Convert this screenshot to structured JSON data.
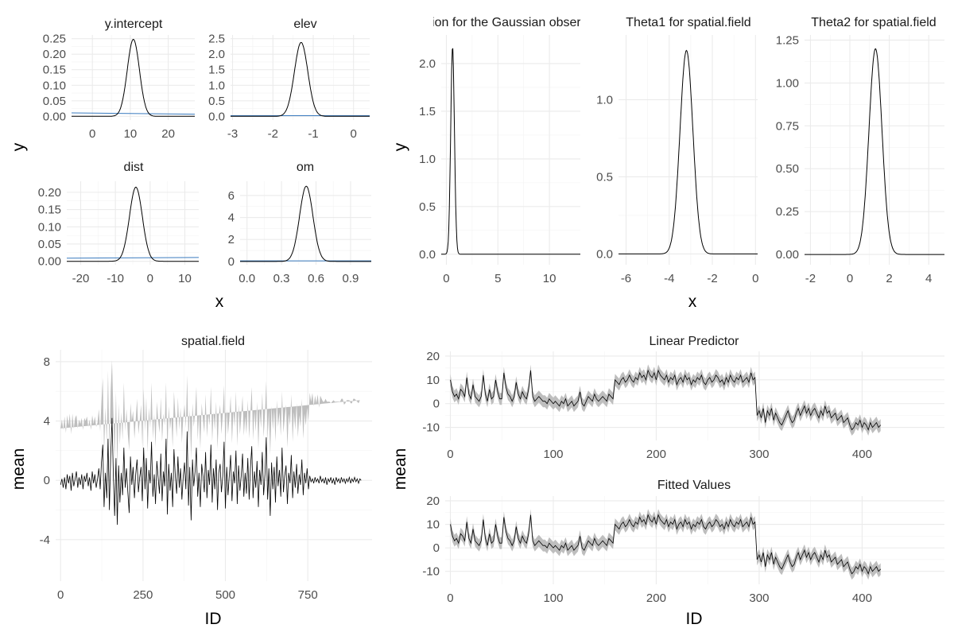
{
  "colors": {
    "band": "#bebebe",
    "mean_line": "#000000",
    "prior": "#3a7bbf",
    "grid": "#ebebeb"
  },
  "labels": {
    "fixed_x": "x",
    "fixed_y": "y",
    "hyper_x": "x",
    "hyper_y": "y",
    "spatial_x": "ID",
    "spatial_y": "mean",
    "pred_x": "ID",
    "pred_y": "mean"
  },
  "chart_data": [
    {
      "type": "line",
      "title": "y.intercept",
      "xlim": [
        -5.5,
        27
      ],
      "ylim": [
        -0.012,
        0.262
      ],
      "xticks": [
        0,
        10,
        20
      ],
      "xtick_labels": [
        "0",
        "10",
        "20"
      ],
      "yticks": [
        0,
        0.05,
        0.1,
        0.15,
        0.2,
        0.25
      ],
      "ytick_labels": [
        "0.00",
        "0.05",
        "0.10",
        "0.15",
        "0.20",
        "0.25"
      ],
      "posterior": {
        "kind": "gauss",
        "mean": 10.8,
        "sd": 1.6,
        "peak": 0.248
      },
      "prior": {
        "x": [
          -5.5,
          27
        ],
        "y": [
          0.011,
          0.007
        ]
      }
    },
    {
      "type": "line",
      "title": "elev",
      "xlim": [
        -3.05,
        0.4
      ],
      "ylim": [
        -0.12,
        2.62
      ],
      "xticks": [
        -3,
        -2,
        -1,
        0
      ],
      "xtick_labels": [
        "-3",
        "-2",
        "-1",
        "0"
      ],
      "yticks": [
        0,
        0.5,
        1.0,
        1.5,
        2.0,
        2.5
      ],
      "ytick_labels": [
        "0.0",
        "0.5",
        "1.0",
        "1.5",
        "2.0",
        "2.5"
      ],
      "posterior": {
        "kind": "gauss",
        "mean": -1.3,
        "sd": 0.166,
        "peak": 2.38
      },
      "prior": {
        "x": [
          -3.05,
          0.4
        ],
        "y": [
          0.02,
          0.02
        ]
      }
    },
    {
      "type": "line",
      "title": "dist",
      "xlim": [
        -24,
        14
      ],
      "ylim": [
        -0.01,
        0.232
      ],
      "xticks": [
        -20,
        -10,
        0,
        10
      ],
      "xtick_labels": [
        "-20",
        "-10",
        "0",
        "10"
      ],
      "yticks": [
        0,
        0.05,
        0.1,
        0.15,
        0.2
      ],
      "ytick_labels": [
        "0.00",
        "0.05",
        "0.10",
        "0.15",
        "0.20"
      ],
      "posterior": {
        "kind": "gauss",
        "mean": -4.1,
        "sd": 1.85,
        "peak": 0.215
      },
      "prior": {
        "x": [
          -24,
          14
        ],
        "y": [
          0.009,
          0.011
        ]
      }
    },
    {
      "type": "line",
      "title": "om",
      "xlim": [
        -0.06,
        1.08
      ],
      "ylim": [
        -0.3,
        7.3
      ],
      "xticks": [
        0,
        0.3,
        0.6,
        0.9
      ],
      "xtick_labels": [
        "0.0",
        "0.3",
        "0.6",
        "0.9"
      ],
      "yticks": [
        0,
        2,
        4,
        6
      ],
      "ytick_labels": [
        "0",
        "2",
        "4",
        "6"
      ],
      "posterior": {
        "kind": "gauss",
        "mean": 0.515,
        "sd": 0.058,
        "peak": 6.85
      },
      "prior": {
        "x": [
          -0.06,
          1.08
        ],
        "y": [
          0.05,
          0.05
        ]
      }
    },
    {
      "type": "line",
      "title": "Precision for the Gaussian observations",
      "xlim": [
        -0.5,
        13
      ],
      "ylim": [
        -0.11,
        2.3
      ],
      "xticks": [
        0,
        5,
        10
      ],
      "xtick_labels": [
        "0",
        "5",
        "10"
      ],
      "yticks": [
        0,
        0.5,
        1.0,
        1.5,
        2.0
      ],
      "ytick_labels": [
        "0.0",
        "0.5",
        "1.0",
        "1.5",
        "2.0"
      ],
      "posterior": {
        "kind": "gauss",
        "mean": 0.6,
        "sd": 0.18,
        "peak": 2.18
      }
    },
    {
      "type": "line",
      "title": "Theta1 for spatial.field",
      "xlim": [
        -6.35,
        0.1
      ],
      "ylim": [
        -0.07,
        1.42
      ],
      "xticks": [
        -6,
        -4,
        -2,
        0
      ],
      "xtick_labels": [
        "-6",
        "-4",
        "-2",
        "0"
      ],
      "yticks": [
        0,
        0.5,
        1.0
      ],
      "ytick_labels": [
        "0.0",
        "0.5",
        "1.0"
      ],
      "posterior": {
        "kind": "gauss",
        "mean": -3.2,
        "sd": 0.3,
        "peak": 1.32
      }
    },
    {
      "type": "line",
      "title": "Theta2 for spatial.field",
      "xlim": [
        -2.3,
        4.8
      ],
      "ylim": [
        -0.06,
        1.28
      ],
      "xticks": [
        -2,
        0,
        2,
        4
      ],
      "xtick_labels": [
        "-2",
        "0",
        "2",
        "4"
      ],
      "yticks": [
        0,
        0.25,
        0.5,
        0.75,
        1.0,
        1.25
      ],
      "ytick_labels": [
        "0.00",
        "0.25",
        "0.50",
        "0.75",
        "1.00",
        "1.25"
      ],
      "posterior": {
        "kind": "gauss",
        "mean": 1.3,
        "sd": 0.33,
        "peak": 1.2
      }
    },
    {
      "type": "area",
      "title": "spatial.field",
      "xlim": [
        -15,
        945
      ],
      "ylim": [
        -6.8,
        8.8
      ],
      "xticks": [
        0,
        250,
        500,
        750
      ],
      "xtick_labels": [
        "0",
        "250",
        "500",
        "750"
      ],
      "yticks": [
        -4,
        0,
        4,
        8
      ],
      "ytick_labels": [
        "-4",
        "0",
        "4",
        "8"
      ],
      "x_step": 4,
      "mean": [
        -0.3,
        0.1,
        -0.5,
        0.2,
        -0.6,
        0.4,
        -0.2,
        0.3,
        -0.7,
        0.5,
        -0.4,
        0.1,
        0.6,
        -0.5,
        0.2,
        -0.3,
        0.4,
        -0.6,
        0.3,
        -0.1,
        0.5,
        -0.4,
        0.2,
        -0.7,
        0.6,
        -0.2,
        0.4,
        -0.5,
        0.1,
        0.8,
        -0.6,
        1.2,
        2.4,
        -1.8,
        0.5,
        -1.2,
        2.8,
        -2.0,
        1.6,
        4.2,
        0.3,
        -2.4,
        1.5,
        -3.0,
        1.0,
        -1.5,
        0.5,
        -1.0,
        2.2,
        -0.5,
        0.8,
        -0.8,
        -2.2,
        1.6,
        -0.3,
        0.9,
        -1.2,
        0.4,
        1.4,
        -0.8,
        0.2,
        0.9,
        -1.4,
        2.2,
        -0.6,
        1.5,
        -1.9,
        0.7,
        -0.2,
        2.6,
        -1.1,
        0.4,
        -1.6,
        1.3,
        0.2,
        -0.9,
        1.8,
        -1.4,
        0.6,
        -0.4,
        2.8,
        -2.3,
        1.1,
        -0.7,
        0.5,
        -1.8,
        2.1,
        0.3,
        -0.9,
        1.6,
        -0.5,
        0.8,
        -1.3,
        0.2,
        1.2,
        -0.6,
        3.3,
        -1.7,
        0.9,
        -2.7,
        1.4,
        -0.4,
        0.6,
        2.2,
        -1.1,
        0.5,
        -1.8,
        1.1,
        0.3,
        -0.8,
        1.9,
        -1.2,
        0.7,
        -0.3,
        2.4,
        -1.5,
        0.8,
        -0.6,
        1.4,
        -2.0,
        0.5,
        1.1,
        -0.8,
        0.3,
        2.6,
        -1.9,
        0.9,
        -1.0,
        0.4,
        1.7,
        -1.4,
        0.6,
        -0.2,
        2.0,
        -1.6,
        1.0,
        -0.7,
        0.3,
        1.8,
        -1.1,
        0.5,
        -0.9,
        1.5,
        -1.3,
        0.8,
        2.3,
        -1.2,
        0.6,
        -0.5,
        1.3,
        -1.8,
        0.7,
        -0.3,
        1.9,
        -1.0,
        0.4,
        2.9,
        -1.3,
        0.8,
        -2.4,
        1.2,
        -0.6,
        0.9,
        -1.5,
        1.6,
        -0.4,
        0.7,
        -1.1,
        2.2,
        -0.8,
        0.3,
        1.0,
        -1.6,
        0.5,
        -0.2,
        1.7,
        -1.2,
        0.6,
        -0.5,
        1.1,
        -0.9,
        0.4,
        -0.3,
        1.4,
        -1.0,
        0.5,
        -0.2,
        0.8,
        -0.6,
        0.3,
        -0.1,
        0.1,
        -0.2,
        0.2,
        -0.1,
        0.1,
        -0.2,
        0.3,
        -0.1,
        0.1,
        -0.2,
        0.2,
        -0.3,
        0.1,
        -0.1,
        0.2,
        -0.2,
        0.1,
        -0.3,
        0.2,
        -0.1,
        0.1,
        -0.2,
        0.2,
        -0.1,
        0.1,
        -0.2,
        0.1,
        -0.1,
        0.2,
        -0.2,
        0.1,
        -0.1,
        0.2,
        -0.1,
        0.1,
        -0.2,
        0.1,
        0.0
      ],
      "half_width": [
        3.8,
        4.0,
        3.9,
        4.1,
        3.8,
        4.0,
        3.9,
        4.2,
        3.8,
        4.0,
        3.9,
        4.1,
        3.8,
        4.0,
        3.9,
        4.1,
        3.8,
        4.0,
        3.9,
        4.1,
        3.8,
        4.0,
        3.9,
        4.1,
        3.8,
        4.0,
        3.9,
        4.1,
        3.8,
        4.0,
        3.9,
        4.1,
        4.5,
        3.6,
        4.4,
        3.7,
        4.6,
        3.8,
        4.4,
        3.9,
        4.3,
        3.7,
        4.5,
        3.8,
        4.2,
        3.9,
        4.1,
        3.7,
        4.4,
        3.8,
        4.0,
        3.9,
        4.2,
        3.6,
        4.3,
        3.8,
        4.0,
        3.7,
        4.1,
        3.9,
        3.8,
        4.2,
        3.7,
        4.0,
        3.9,
        4.1,
        3.8,
        4.2,
        3.7,
        4.0,
        3.9,
        4.1,
        3.8,
        4.0,
        3.9,
        4.1,
        3.8,
        4.0,
        3.9,
        4.1,
        3.8,
        4.0,
        3.9,
        4.1,
        3.8,
        4.0,
        3.9,
        4.1,
        3.8,
        4.0,
        3.9,
        4.1,
        3.8,
        4.0,
        3.9,
        4.1,
        3.8,
        4.0,
        3.9,
        4.1,
        3.8,
        4.0,
        3.9,
        4.1,
        3.8,
        4.0,
        3.9,
        4.1,
        3.8,
        4.0,
        3.9,
        4.1,
        3.8,
        4.0,
        3.9,
        4.1,
        3.8,
        4.0,
        3.9,
        4.1,
        3.8,
        4.0,
        3.9,
        4.1,
        3.8,
        4.0,
        3.9,
        4.1,
        3.8,
        4.0,
        3.9,
        4.1,
        3.8,
        4.0,
        3.9,
        4.1,
        3.8,
        4.0,
        3.9,
        4.1,
        3.8,
        4.0,
        3.9,
        4.1,
        3.8,
        4.0,
        3.9,
        4.1,
        3.8,
        4.0,
        3.9,
        4.1,
        3.8,
        4.0,
        3.9,
        4.1,
        3.8,
        4.0,
        3.9,
        4.1,
        3.8,
        4.0,
        3.9,
        4.1,
        3.8,
        4.0,
        3.9,
        4.1,
        3.8,
        4.0,
        3.9,
        4.1,
        3.8,
        4.0,
        3.9,
        4.1,
        3.8,
        4.0,
        3.9,
        4.1,
        3.8,
        4.0,
        3.9,
        4.1,
        3.8,
        4.0,
        3.9,
        4.1,
        4.6,
        5.6,
        5.4,
        5.8,
        5.2,
        5.5,
        5.3,
        5.7,
        5.1,
        5.4,
        5.6,
        5.2,
        5.5,
        5.3,
        5.6,
        5.2,
        5.4,
        5.0,
        5.5,
        5.3,
        5.6,
        5.1,
        5.4,
        5.2,
        5.5,
        5.3,
        5.6,
        5.0,
        5.4,
        5.3,
        5.5,
        5.2,
        5.4,
        5.1,
        5.6,
        5.3,
        5.5,
        5.2,
        5.4,
        5.3
      ]
    },
    {
      "type": "area",
      "title": "Linear Predictor",
      "xlim": [
        -5,
        480
      ],
      "ylim": [
        -15.5,
        22
      ],
      "xticks": [
        0,
        100,
        200,
        300,
        400
      ],
      "xtick_labels": [
        "0",
        "100",
        "200",
        "300",
        "400"
      ],
      "yticks": [
        -10,
        0,
        10,
        20
      ],
      "ytick_labels": [
        "-10",
        "0",
        "10",
        "20"
      ],
      "x_step": 2,
      "mean": [
        10,
        5,
        3,
        4,
        2,
        6,
        5,
        3,
        11,
        4,
        2,
        8,
        3,
        2,
        1,
        3,
        12,
        4,
        1,
        6,
        2,
        3,
        10,
        5,
        2,
        2,
        13,
        7,
        4,
        3,
        1,
        3,
        9,
        4,
        2,
        5,
        3,
        2,
        6,
        14,
        3,
        1,
        2,
        3,
        2,
        1,
        1,
        0,
        2,
        1,
        0,
        1,
        0,
        -1,
        1,
        0,
        2,
        -1,
        0,
        1,
        -1,
        0,
        1,
        5,
        0,
        -1,
        1,
        3,
        2,
        1,
        4,
        2,
        1,
        2,
        3,
        2,
        1,
        4,
        3,
        2,
        10,
        9,
        8,
        10,
        11,
        9,
        10,
        12,
        10,
        9,
        11,
        10,
        13,
        11,
        12,
        10,
        14,
        12,
        11,
        13,
        10,
        14,
        12,
        11,
        10,
        12,
        9,
        11,
        10,
        12,
        8,
        10,
        11,
        9,
        12,
        10,
        11,
        8,
        10,
        9,
        11,
        10,
        12,
        9,
        8,
        10,
        11,
        9,
        10,
        12,
        11,
        9,
        10,
        8,
        11,
        9,
        12,
        10,
        9,
        11,
        10,
        12,
        9,
        10,
        11,
        9,
        13,
        10,
        11,
        -5,
        -3,
        -6,
        -2,
        -8,
        -3,
        -5,
        -2,
        -7,
        -4,
        -6,
        -8,
        -9,
        -7,
        -5,
        -3,
        -6,
        -8,
        -7,
        -4,
        -2,
        -5,
        -3,
        -1,
        -4,
        -2,
        -5,
        -3,
        -2,
        -4,
        -6,
        -3,
        -5,
        -1,
        -4,
        -3,
        -6,
        -5,
        -4,
        -7,
        -6,
        -5,
        -8,
        -7,
        -6,
        -9,
        -11,
        -10,
        -8,
        -9,
        -7,
        -10,
        -8,
        -9,
        -11,
        -8,
        -10,
        -9,
        -8,
        -10,
        -9
      ]
    },
    {
      "type": "area",
      "title": "Fitted Values",
      "xlim": [
        -5,
        480
      ],
      "ylim": [
        -15.5,
        22
      ],
      "xticks": [
        0,
        100,
        200,
        300,
        400
      ],
      "xtick_labels": [
        "0",
        "100",
        "200",
        "300",
        "400"
      ],
      "yticks": [
        -10,
        0,
        10,
        20
      ],
      "ytick_labels": [
        "-10",
        "0",
        "10",
        "20"
      ],
      "x_step": 2,
      "mean": [
        10,
        5,
        3,
        4,
        2,
        6,
        5,
        3,
        11,
        4,
        2,
        8,
        3,
        2,
        1,
        3,
        12,
        4,
        1,
        6,
        2,
        3,
        10,
        5,
        2,
        2,
        13,
        7,
        4,
        3,
        1,
        3,
        9,
        4,
        2,
        5,
        3,
        2,
        6,
        14,
        3,
        1,
        2,
        3,
        2,
        1,
        1,
        0,
        2,
        1,
        0,
        1,
        0,
        -1,
        1,
        0,
        2,
        -1,
        0,
        1,
        -1,
        0,
        1,
        5,
        0,
        -1,
        1,
        3,
        2,
        1,
        4,
        2,
        1,
        2,
        3,
        2,
        1,
        4,
        3,
        2,
        10,
        9,
        8,
        10,
        11,
        9,
        10,
        12,
        10,
        9,
        11,
        10,
        13,
        11,
        12,
        10,
        14,
        12,
        11,
        13,
        10,
        14,
        12,
        11,
        10,
        12,
        9,
        11,
        10,
        12,
        8,
        10,
        11,
        9,
        12,
        10,
        11,
        8,
        10,
        9,
        11,
        10,
        12,
        9,
        8,
        10,
        11,
        9,
        10,
        12,
        11,
        9,
        10,
        8,
        11,
        9,
        12,
        10,
        9,
        11,
        10,
        12,
        9,
        10,
        11,
        9,
        13,
        10,
        11,
        -5,
        -3,
        -6,
        -2,
        -8,
        -3,
        -5,
        -2,
        -7,
        -4,
        -6,
        -8,
        -9,
        -7,
        -5,
        -3,
        -6,
        -8,
        -7,
        -4,
        -2,
        -5,
        -3,
        -1,
        -4,
        -2,
        -5,
        -3,
        -2,
        -4,
        -6,
        -3,
        -5,
        -1,
        -4,
        -3,
        -6,
        -5,
        -4,
        -7,
        -6,
        -5,
        -8,
        -7,
        -6,
        -9,
        -11,
        -10,
        -8,
        -9,
        -7,
        -10,
        -8,
        -9,
        -11,
        -8,
        -10,
        -9,
        -8,
        -10,
        -9
      ]
    }
  ]
}
